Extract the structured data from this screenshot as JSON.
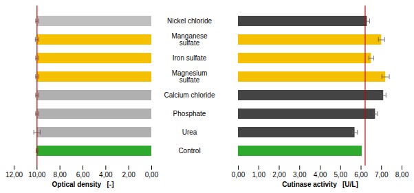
{
  "chart_data": [
    {
      "type": "bar",
      "orientation": "horizontal",
      "categories": [
        "Control",
        "Urea",
        "Phosphate",
        "Calcium chloride",
        "Magnesium\nsulfate",
        "Iron sulfate",
        "Manganese\nsulfate",
        "Nickel chloride"
      ],
      "values": [
        10.0,
        10.0,
        10.0,
        10.0,
        10.0,
        10.0,
        10.0,
        10.0
      ],
      "errors": [
        0.08,
        0.28,
        0.12,
        0.12,
        0.12,
        0.12,
        0.15,
        0.12
      ],
      "colors": [
        "#2eaa2e",
        "#b0b0b0",
        "#b0b0b0",
        "#b0b0b0",
        "#f5c000",
        "#f5c000",
        "#f5c000",
        "#c0c0c0"
      ],
      "ref_line": {
        "value": 10.0,
        "color": "#cc0000"
      },
      "x_label": "Optical density   [-]",
      "xlim": [
        12.0,
        0.0
      ],
      "xticks": [
        {
          "value": 12.0,
          "label": "12,00"
        },
        {
          "value": 10.0,
          "label": "10,00"
        },
        {
          "value": 8.0,
          "label": "8,00"
        },
        {
          "value": 6.0,
          "label": "6,00"
        },
        {
          "value": 4.0,
          "label": "4,00"
        },
        {
          "value": 2.0,
          "label": "2,00"
        },
        {
          "value": 0.0,
          "label": "0,00"
        }
      ],
      "tick_labels": "x"
    },
    {
      "type": "bar",
      "orientation": "horizontal",
      "categories": [
        "Control",
        "Urea",
        "Phosphate",
        "Calcium chloride",
        "Magnesium\nsulfate",
        "Iron sulfate",
        "Manganese\nsulfate",
        "Nickel chloride"
      ],
      "values": [
        6.05,
        5.7,
        6.7,
        7.1,
        7.2,
        6.5,
        7.0,
        6.3
      ],
      "errors": [
        0.0,
        0.12,
        0.1,
        0.12,
        0.18,
        0.12,
        0.15,
        0.12
      ],
      "colors": [
        "#2eaa2e",
        "#444444",
        "#444444",
        "#444444",
        "#f5c000",
        "#f5c000",
        "#f5c000",
        "#444444"
      ],
      "ref_line": {
        "value": 6.2,
        "color": "#cc0000"
      },
      "x_label": "Cutinase activity   [U/L]",
      "xlim": [
        0.0,
        8.0
      ],
      "xticks": [
        {
          "value": 0.0,
          "label": "0,00"
        },
        {
          "value": 1.0,
          "label": "1,00"
        },
        {
          "value": 2.0,
          "label": "2,00"
        },
        {
          "value": 3.0,
          "label": "3,00"
        },
        {
          "value": 4.0,
          "label": "4,00"
        },
        {
          "value": 5.0,
          "label": "5,00"
        },
        {
          "value": 6.0,
          "label": "6,00"
        },
        {
          "value": 7.0,
          "label": "7,00"
        },
        {
          "value": 8.0,
          "label": "8,00"
        }
      ],
      "tick_labels": "x"
    }
  ]
}
